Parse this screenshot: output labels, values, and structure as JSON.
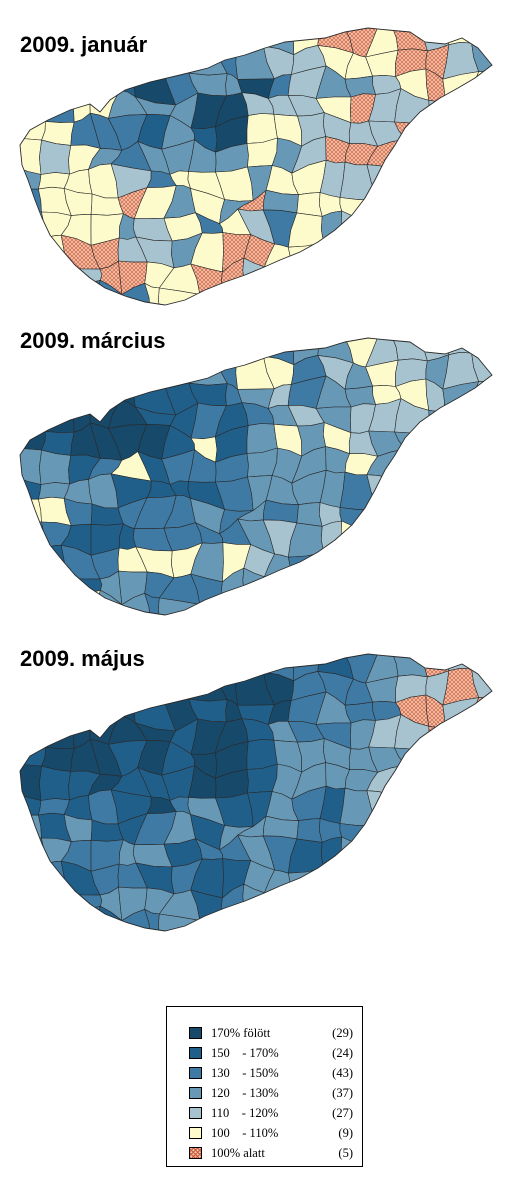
{
  "maps": [
    {
      "title": "2009. január"
    },
    {
      "title": "2009. március"
    },
    {
      "title": "2009. május"
    }
  ],
  "colors": {
    "c170": "#17496b",
    "c150": "#215f8b",
    "c130": "#3e7aa4",
    "c120": "#6799b7",
    "c110": "#a6c3cf",
    "c100": "#fdfbcb",
    "below100_fill": "#f4c2a6",
    "below100_hatch": "#c9573c",
    "border": "#2a2a2a"
  },
  "legend": {
    "items": [
      {
        "key": "c170",
        "label": "170% fölött",
        "count": "(29)"
      },
      {
        "key": "c150",
        "label": "150    - 170%",
        "count": "(24)"
      },
      {
        "key": "c130",
        "label": "130    - 150%",
        "count": "(43)"
      },
      {
        "key": "c120",
        "label": "120    - 130%",
        "count": "(37)"
      },
      {
        "key": "c110",
        "label": "110    - 120%",
        "count": "(27)"
      },
      {
        "key": "c100",
        "label": "100    - 110%",
        "count": "(9)"
      },
      {
        "key": "below100",
        "label": "100% alatt",
        "count": "(5)"
      }
    ]
  }
}
